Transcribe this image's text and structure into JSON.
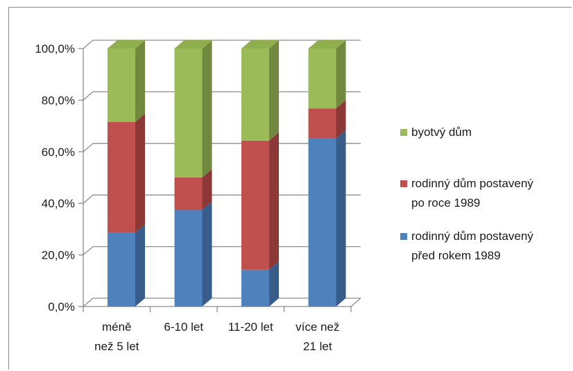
{
  "chart_data": {
    "type": "bar",
    "stacked": true,
    "percent": true,
    "three_d": true,
    "categories": [
      [
        "méně",
        "než 5 let"
      ],
      [
        "6-10 let"
      ],
      [
        "11-20 let"
      ],
      [
        "více než",
        "21 let"
      ]
    ],
    "series": [
      {
        "name": [
          "rodinný dům postavený",
          "před rokem 1989"
        ],
        "values": [
          28.6,
          37.5,
          14.3,
          65.2
        ],
        "color": "#4f81bd",
        "side": "#385d8a",
        "top": "#5b8ecb"
      },
      {
        "name": [
          "rodinný dům postavený",
          "po roce 1989"
        ],
        "values": [
          42.9,
          12.5,
          50.0,
          11.6
        ],
        "color": "#c0504d",
        "side": "#8c3836",
        "top": "#cd5b58"
      },
      {
        "name": [
          "byotvý dům"
        ],
        "values": [
          28.5,
          50.0,
          35.7,
          23.2
        ],
        "color": "#9bbb59",
        "side": "#71893f",
        "top": "#8fae4f"
      }
    ],
    "yticks": [
      "0,0%",
      "20,0%",
      "40,0%",
      "60,0%",
      "80,0%",
      "100,0%"
    ],
    "ylim": [
      0,
      100
    ],
    "grid": true,
    "legend_position": "right",
    "legend_order": [
      2,
      1,
      0
    ]
  }
}
